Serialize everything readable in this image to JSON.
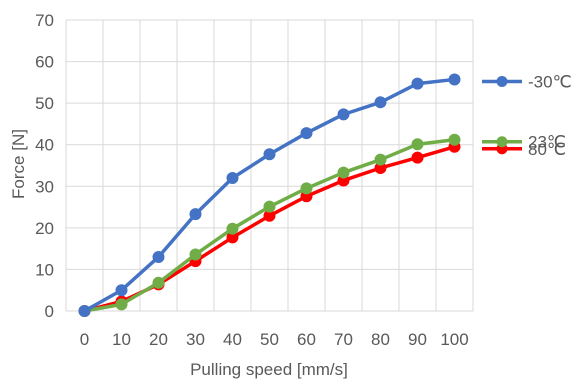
{
  "chart_data": {
    "type": "line",
    "title": "",
    "xlabel": "Pulling speed [mm/s]",
    "ylabel": "Force [N]",
    "x": [
      0,
      10,
      20,
      30,
      40,
      50,
      60,
      70,
      80,
      90,
      100
    ],
    "x_tick_labels": [
      "0",
      "10",
      "20",
      "30",
      "40",
      "50",
      "60",
      "70",
      "80",
      "90",
      "100"
    ],
    "ylim": [
      0,
      70
    ],
    "y_ticks": [
      0,
      10,
      20,
      30,
      40,
      50,
      60,
      70
    ],
    "y_tick_labels": [
      "0",
      "10",
      "20",
      "30",
      "40",
      "50",
      "60",
      "70"
    ],
    "grid": "vertical and horizontal",
    "legend_placement": "right",
    "series": [
      {
        "name": "80℃",
        "color": "#ff0000",
        "values": [
          0,
          2.3,
          6.4,
          12.0,
          17.7,
          22.9,
          27.6,
          31.4,
          34.4,
          36.9,
          39.5
        ]
      },
      {
        "name": "23℃",
        "color": "#70ad47",
        "values": [
          0,
          1.6,
          6.8,
          13.6,
          19.8,
          25.1,
          29.5,
          33.3,
          36.4,
          40.1,
          41.2
        ]
      },
      {
        "name": "-30℃",
        "color": "#4472c4",
        "values": [
          0,
          5.0,
          13.0,
          23.3,
          32.0,
          37.7,
          42.8,
          47.3,
          50.2,
          54.7,
          55.7
        ]
      }
    ]
  }
}
